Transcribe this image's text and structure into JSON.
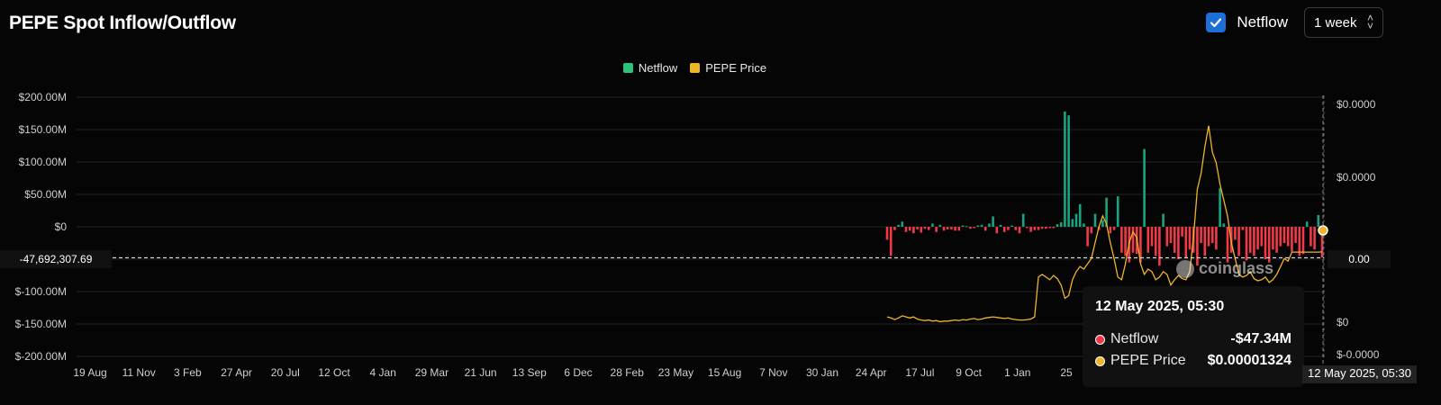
{
  "header": {
    "title": "PEPE Spot Inflow/Outflow",
    "netflow_toggle_label": "Netflow",
    "netflow_checked": true,
    "interval_value": "1 week"
  },
  "colors": {
    "netflow_positive": "#1aa37f",
    "netflow_negative": "#f03a47",
    "price_line": "#f0b429",
    "checkbox": "#1b6fd6"
  },
  "icons": {
    "checkbox": "checkmark-icon",
    "select": "chevron-updown-icon",
    "watermark": "coinglass-logo-icon"
  },
  "crosshair": {
    "left_axis_value": "-47,692,307.69",
    "right_axis_value": "0.00",
    "date_label": "12 May 2025, 05:30"
  },
  "tooltip": {
    "title": "12 May 2025, 05:30",
    "rows": [
      {
        "name": "Netflow",
        "value": "-$47.34M",
        "color": "#f03a47"
      },
      {
        "name": "PEPE Price",
        "value": "$0.00001324",
        "color": "#f0b429"
      }
    ]
  },
  "watermark": {
    "text": "coinglass"
  },
  "chart_data": {
    "type": "bar",
    "title": "PEPE Spot Inflow/Outflow",
    "legend": [
      "Netflow",
      "PEPE Price"
    ],
    "legend_position": "top-center",
    "grid": true,
    "x_tick_labels": [
      "19 Aug",
      "11 Nov",
      "3 Feb",
      "27 Apr",
      "20 Jul",
      "12 Oct",
      "4 Jan",
      "29 Mar",
      "21 Jun",
      "13 Sep",
      "6 Dec",
      "28 Feb",
      "23 May",
      "15 Aug",
      "7 Nov",
      "30 Jan",
      "24 Apr",
      "17 Jul",
      "9 Oct",
      "1 Jan",
      "25"
    ],
    "y_left": {
      "ticks": [
        "$200.00M",
        "$150.00M",
        "$100.00M",
        "$50.00M",
        "$0",
        "$-100.00M",
        "$-150.00M",
        "$-200.00M"
      ],
      "tick_values": [
        200,
        150,
        100,
        50,
        0,
        -100,
        -150,
        -200
      ],
      "range": [
        -200,
        200
      ],
      "unit": "$M"
    },
    "y_right": {
      "ticks": [
        "$0.0000",
        "$0.0000",
        "$0",
        "$-0.0000"
      ],
      "tick_values": [
        3e-05,
        1.9e-05,
        -1.5e-05,
        -1.9e-05
      ],
      "range": [
        -2e-05,
        4e-05
      ]
    },
    "series": [
      {
        "name": "Netflow",
        "type": "bar",
        "axis": "left",
        "values": [
          -20,
          -45,
          -5,
          3,
          8,
          -8,
          -6,
          -10,
          -4,
          -9,
          -3,
          -5,
          5,
          -8,
          3,
          -6,
          -4,
          -4,
          -6,
          -6,
          2,
          1,
          -3,
          -2,
          2,
          3,
          -6,
          5,
          16,
          -10,
          3,
          -8,
          -5,
          2,
          -5,
          -10,
          20,
          -2,
          -8,
          -5,
          -5,
          -3,
          -3,
          -2,
          -2,
          4,
          7,
          178,
          172,
          12,
          20,
          35,
          5,
          -30,
          -10,
          20,
          -5,
          10,
          45,
          -10,
          -5,
          47,
          -40,
          -45,
          -55,
          -40,
          -42,
          -55,
          120,
          -40,
          -30,
          -45,
          -60,
          20,
          -30,
          -25,
          -40,
          -50,
          -15,
          -48,
          -35,
          -40,
          -60,
          -25,
          -45,
          -30,
          -25,
          -35,
          60,
          5,
          -55,
          -40,
          -20,
          -45,
          -5,
          -52,
          -40,
          -45,
          -35,
          -30,
          -50,
          -55,
          -35,
          -40,
          -30,
          -25,
          -30,
          -38,
          -25,
          -45,
          -42,
          8,
          -30,
          -35,
          18,
          -47.34
        ]
      },
      {
        "name": "PEPE Price",
        "type": "line",
        "axis": "right",
        "values": [
          1e-06,
          8e-07,
          5e-07,
          8e-07,
          1.2e-06,
          1e-06,
          8e-07,
          1e-06,
          6e-07,
          4e-07,
          3e-07,
          4e-07,
          2e-07,
          3e-07,
          1e-07,
          2e-07,
          2e-07,
          3e-07,
          4e-07,
          3e-07,
          5e-07,
          4e-07,
          6e-07,
          7e-07,
          5e-07,
          6e-07,
          8e-07,
          9e-07,
          1e-06,
          9e-07,
          8e-07,
          7e-07,
          8e-07,
          6e-07,
          5e-07,
          4e-07,
          4e-07,
          5e-07,
          6e-07,
          1e-06,
          8.5e-06,
          9e-06,
          8.5e-06,
          8e-06,
          8.8e-06,
          8.2e-06,
          7e-06,
          4.5e-06,
          5e-06,
          8e-06,
          9.5e-06,
          1.05e-05,
          1e-05,
          1.1e-05,
          1.2e-05,
          1.5e-05,
          1.8e-05,
          2e-05,
          1.85e-05,
          1.5e-05,
          1.2e-05,
          8.5e-06,
          8e-06,
          1.1e-05,
          1.5e-05,
          1.7e-05,
          1.6e-05,
          1.1e-05,
          9e-06,
          1e-05,
          9.5e-06,
          8e-06,
          8.5e-06,
          9.5e-06,
          9e-06,
          7e-06,
          8e-06,
          8.8e-06,
          8.2e-06,
          8e-06,
          9.5e-06,
          1.6e-05,
          2.5e-05,
          2.8e-05,
          3.3e-05,
          3.7e-05,
          3.2e-05,
          3e-05,
          2.6e-05,
          2.3e-05,
          2e-05,
          1.5e-05,
          1.2e-05,
          9e-06,
          8.5e-06,
          8.8e-06,
          9.5e-06,
          8.2e-06,
          7.8e-06,
          8e-06,
          8.5e-06,
          7.5e-06,
          8e-06,
          9e-06,
          1.05e-05,
          1.2e-05,
          1.15e-05,
          1.32e-05,
          1.32e-05,
          1.32e-05,
          1.32e-05,
          1.32e-05,
          1.32e-05,
          1.32e-05,
          1.32e-05,
          1.324e-05
        ]
      }
    ]
  }
}
